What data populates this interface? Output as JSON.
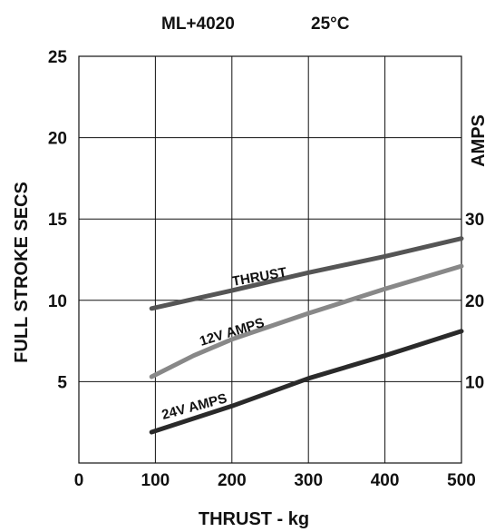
{
  "header": {
    "model": "ML+4020",
    "temperature": "25°C"
  },
  "chart_data": {
    "type": "line",
    "xlabel": "THRUST - kg",
    "ylabel": "FULL STROKE SECS",
    "y2label": "AMPS",
    "xlim": [
      0,
      500
    ],
    "ylim": [
      0,
      25
    ],
    "y2lim": [
      0,
      50
    ],
    "x_ticks": [
      "0",
      "100",
      "200",
      "300",
      "400",
      "500"
    ],
    "y_ticks": [
      "5",
      "10",
      "15",
      "20",
      "25"
    ],
    "y2_ticks": [
      "10",
      "20",
      "30"
    ],
    "grid": true,
    "series": [
      {
        "name": "THRUST",
        "axis": "left",
        "color": "#555555",
        "x": [
          95,
          200,
          300,
          400,
          500
        ],
        "y": [
          9.5,
          10.6,
          11.7,
          12.7,
          13.8
        ]
      },
      {
        "name": "12V AMPS",
        "axis": "left",
        "color": "#888888",
        "x": [
          95,
          150,
          200,
          300,
          400,
          500
        ],
        "y": [
          5.3,
          6.6,
          7.6,
          9.2,
          10.7,
          12.1
        ]
      },
      {
        "name": "24V AMPS",
        "axis": "left",
        "color": "#2a2a2a",
        "x": [
          95,
          200,
          300,
          400,
          500
        ],
        "y": [
          1.9,
          3.5,
          5.2,
          6.6,
          8.1
        ]
      }
    ]
  }
}
